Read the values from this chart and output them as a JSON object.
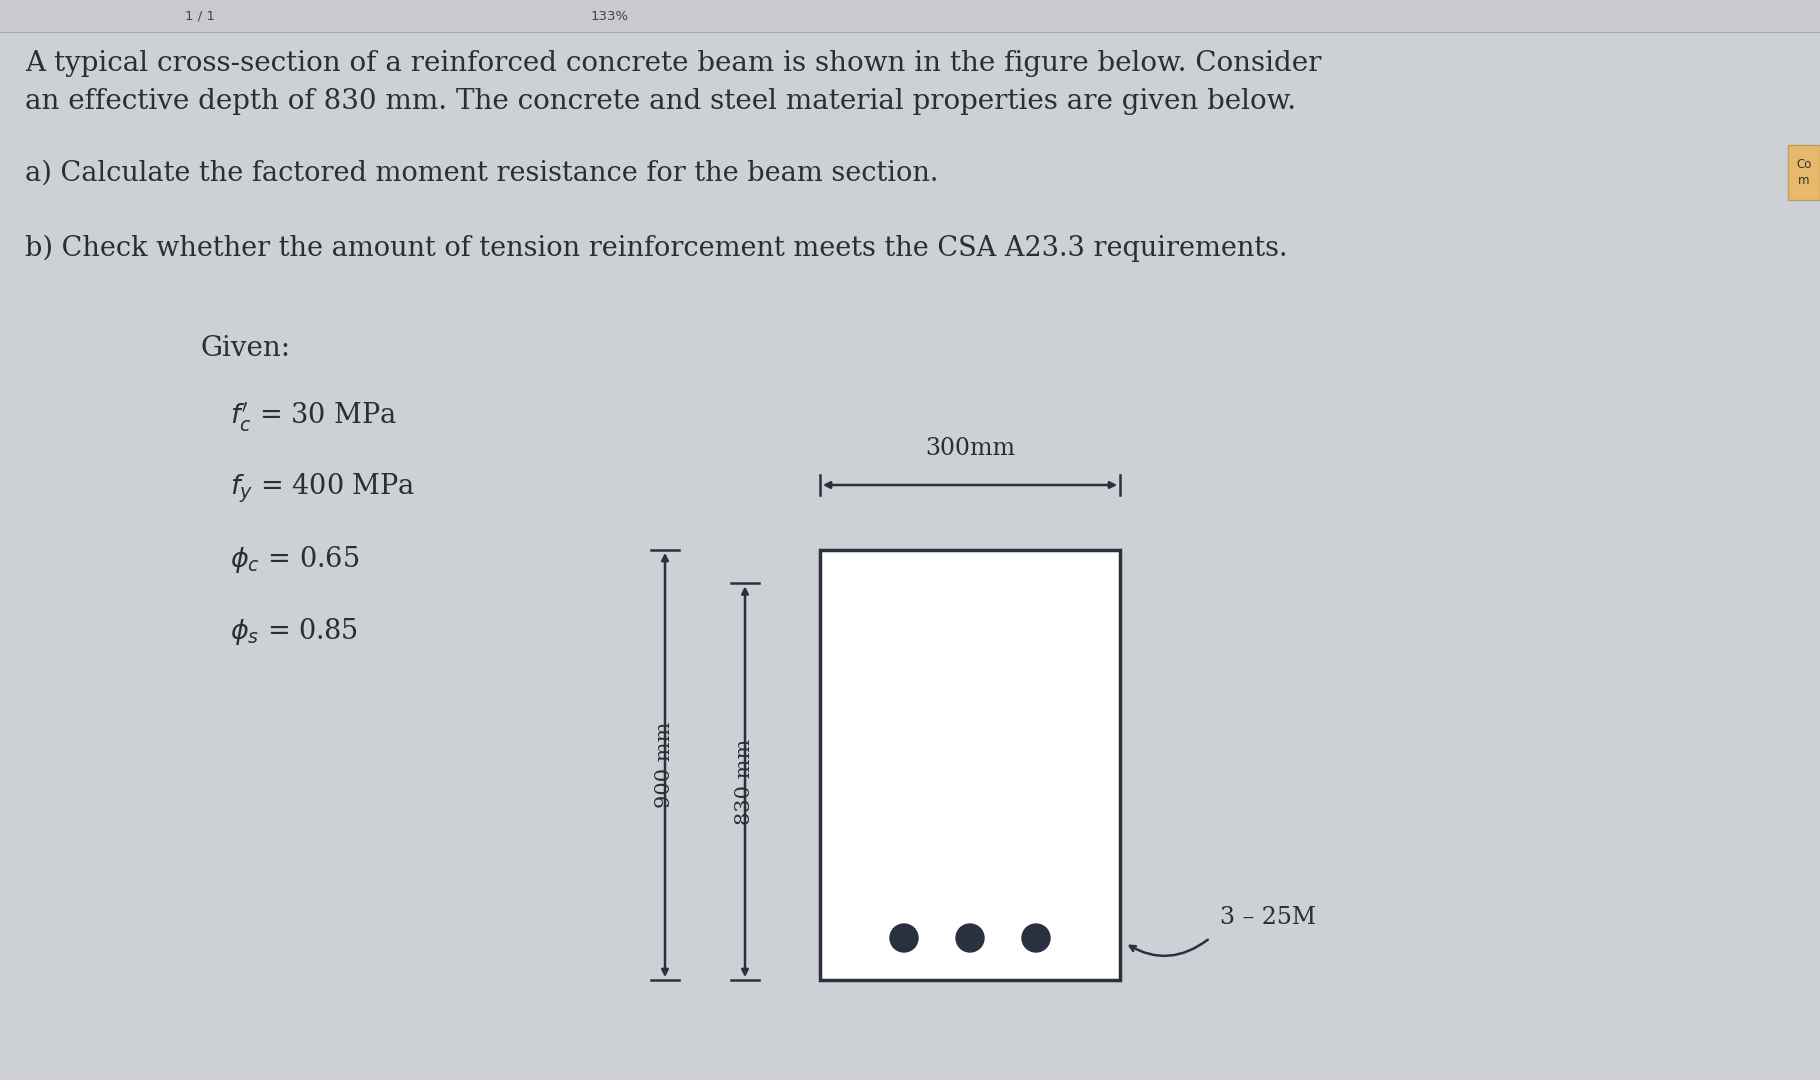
{
  "bg_color": "#cdd0d4",
  "toolbar_color": "#c8cacd",
  "text_color": "#2a2e35",
  "line_color": "#2a3040",
  "title_line1": "A typical cross-section of a reinforced concrete beam is shown in the figure below. Consider",
  "title_line2": "an effective depth of 830 mm. The concrete and steel material properties are given below.",
  "part_a": "a) Calculate the factored moment resistance for the beam section.",
  "part_b": "b) Check whether the amount of tension reinforcement meets the CSA A23.3 requirements.",
  "given_label": "Given:",
  "props": [
    "$f_c'$ = 30 MPa",
    "$f_y$ = 400 MPa",
    "$\\phi_c$ = 0.65",
    "$\\phi_s$ = 0.85"
  ],
  "label_900": "900 mm",
  "label_830": "830 mm",
  "label_300": "300mm",
  "label_bars": "3 – 25M",
  "tab_lines": [
    "Co",
    "m"
  ],
  "tab_color": "#e8b96a",
  "toolbar_text": [
    "1 / 1",
    "133%"
  ]
}
